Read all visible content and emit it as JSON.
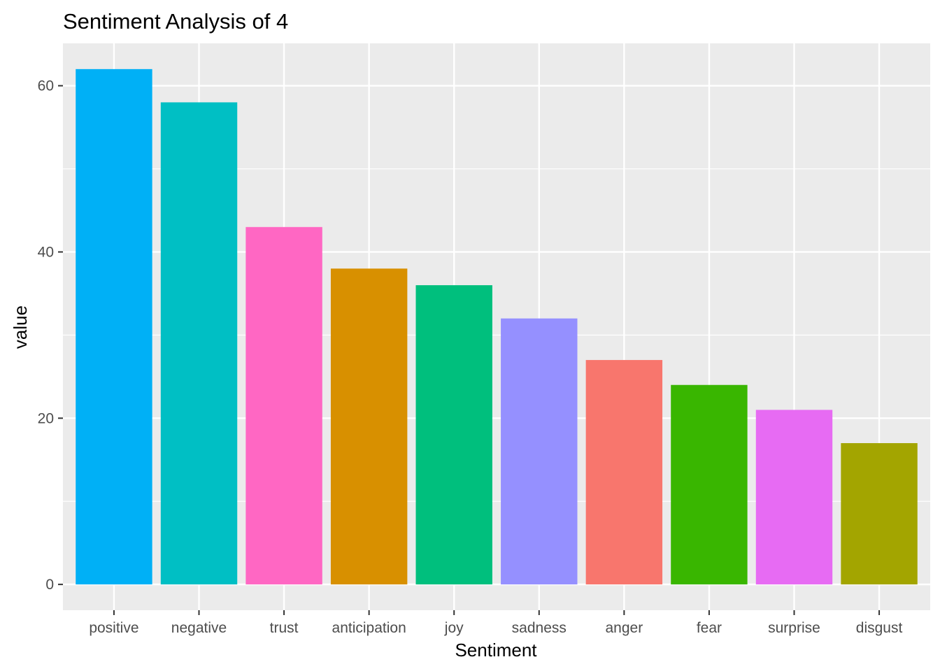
{
  "chart_data": {
    "type": "bar",
    "title": "Sentiment Analysis of 4",
    "xlabel": "Sentiment",
    "ylabel": "value",
    "categories": [
      "positive",
      "negative",
      "trust",
      "anticipation",
      "joy",
      "sadness",
      "anger",
      "fear",
      "surprise",
      "disgust"
    ],
    "values": [
      62,
      58,
      43,
      38,
      36,
      32,
      27,
      24,
      21,
      17
    ],
    "colors": [
      "#00B0F6",
      "#00BFC4",
      "#FF67C3",
      "#D89000",
      "#00BF7D",
      "#9590FF",
      "#F8766D",
      "#39B600",
      "#E76BF3",
      "#A3A500"
    ],
    "ylim": [
      -3.1,
      65.1
    ],
    "yticks": [
      0,
      20,
      40,
      60
    ],
    "y_minor_ticks": [
      10,
      30,
      50
    ],
    "grid": true,
    "panel_background": "#EBEBEB",
    "grid_color": "#FFFFFF",
    "legend": "none"
  }
}
